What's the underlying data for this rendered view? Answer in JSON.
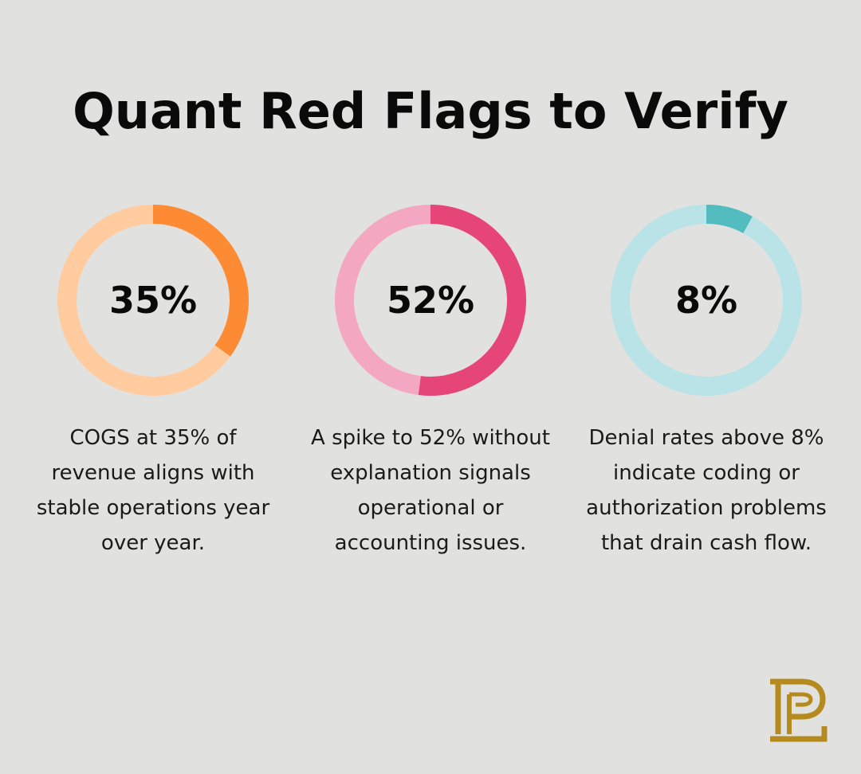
{
  "title": "Quant Red Flags to Verify",
  "chart_data": [
    {
      "type": "pie",
      "label": "35%",
      "value": 35,
      "description": "COGS at 35% of revenue aligns with stable operations year over year.",
      "colors": {
        "fill": "#fd8b33",
        "track": "#ffcb9f"
      }
    },
    {
      "type": "pie",
      "label": "52%",
      "value": 52,
      "description": "A spike to 52% without explanation signals operational or accounting issues.",
      "colors": {
        "fill": "#e64577",
        "track": "#f4a7c0"
      }
    },
    {
      "type": "pie",
      "label": "8%",
      "value": 8,
      "description": "Denial rates above 8% indicate coding or authorization problems that drain cash flow.",
      "colors": {
        "fill": "#53bcbf",
        "track": "#b9e3e6"
      }
    }
  ],
  "logo": {
    "icon": "pl-monogram-icon",
    "color": "#b58a1e"
  }
}
